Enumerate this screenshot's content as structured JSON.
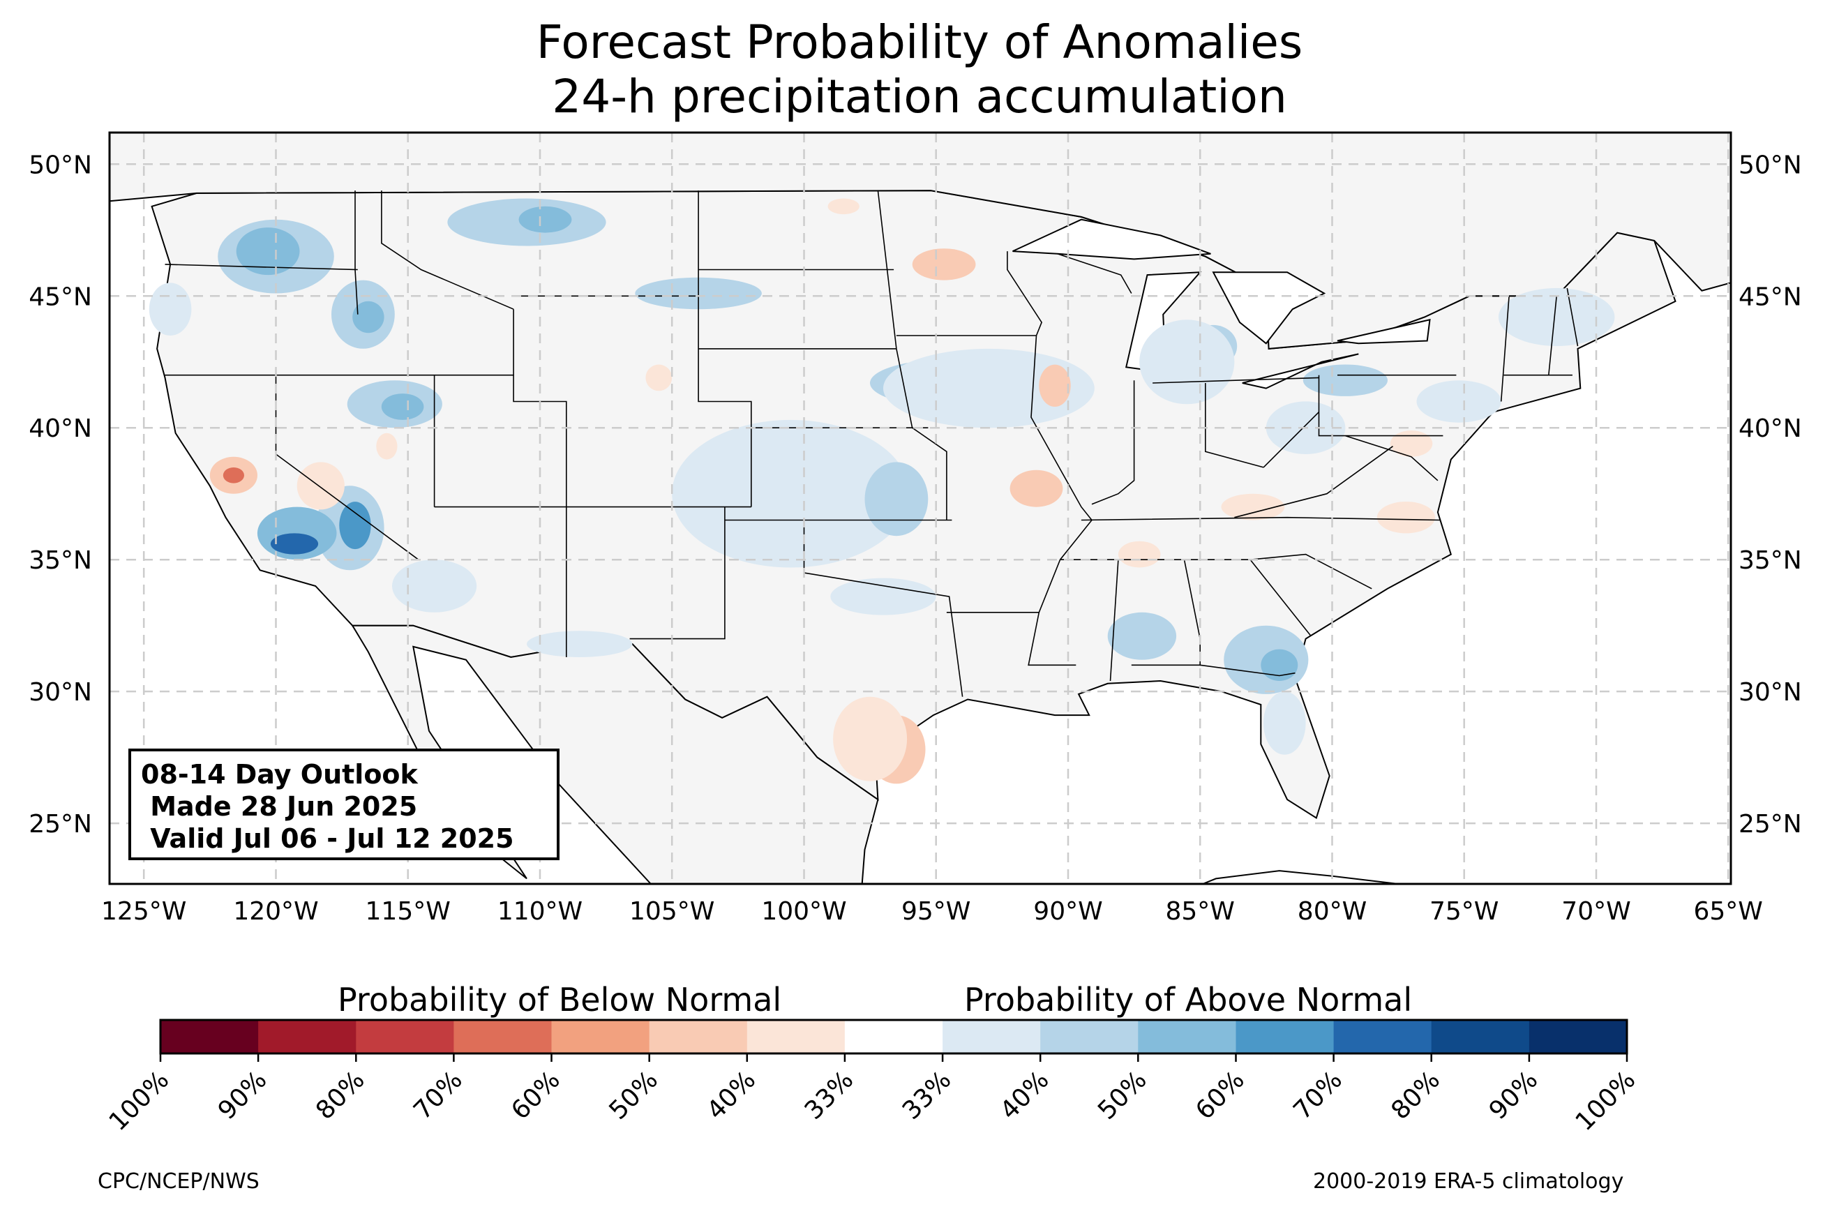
{
  "title_line1": "Forecast Probability of Anomalies",
  "title_line2": "24-h precipitation accumulation",
  "map": {
    "lon_range": [
      -126.3,
      -64.9
    ],
    "lat_range": [
      22.7,
      51.2
    ],
    "lat_labels": [
      "50°N",
      "45°N",
      "40°N",
      "35°N",
      "30°N",
      "25°N"
    ],
    "lat_values": [
      50,
      45,
      40,
      35,
      30,
      25
    ],
    "lon_labels": [
      "125°W",
      "120°W",
      "115°W",
      "110°W",
      "105°W",
      "100°W",
      "95°W",
      "90°W",
      "85°W",
      "80°W",
      "75°W",
      "70°W",
      "65°W"
    ],
    "lon_values": [
      -125,
      -120,
      -115,
      -110,
      -105,
      -100,
      -95,
      -90,
      -85,
      -80,
      -75,
      -70,
      -65
    ],
    "land_color": "#f5f5f5",
    "water_color": "#ffffff",
    "grid_line_color": "#cccccc",
    "anomaly_areas": [
      {
        "category": "above",
        "level": 2,
        "lon": -120.0,
        "lat": 46.5,
        "rlon": 2.2,
        "rlat": 1.4
      },
      {
        "category": "above",
        "level": 3,
        "lon": -120.3,
        "lat": 46.7,
        "rlon": 1.2,
        "rlat": 0.9
      },
      {
        "category": "above",
        "level": 2,
        "lon": -116.7,
        "lat": 44.3,
        "rlon": 1.2,
        "rlat": 1.3
      },
      {
        "category": "above",
        "level": 3,
        "lon": -116.5,
        "lat": 44.2,
        "rlon": 0.6,
        "rlat": 0.6
      },
      {
        "category": "above",
        "level": 2,
        "lon": -110.5,
        "lat": 47.8,
        "rlon": 3.0,
        "rlat": 0.9
      },
      {
        "category": "above",
        "level": 3,
        "lon": -109.8,
        "lat": 47.9,
        "rlon": 1.0,
        "rlat": 0.5
      },
      {
        "category": "above",
        "level": 2,
        "lon": -104.0,
        "lat": 45.1,
        "rlon": 2.4,
        "rlat": 0.6
      },
      {
        "category": "above",
        "level": 2,
        "lon": -115.5,
        "lat": 40.9,
        "rlon": 1.8,
        "rlat": 0.9
      },
      {
        "category": "above",
        "level": 3,
        "lon": -115.2,
        "lat": 40.8,
        "rlon": 0.8,
        "rlat": 0.5
      },
      {
        "category": "above",
        "level": 2,
        "lon": -117.2,
        "lat": 36.2,
        "rlon": 1.3,
        "rlat": 1.6
      },
      {
        "category": "above",
        "level": 4,
        "lon": -117.0,
        "lat": 36.3,
        "rlon": 0.6,
        "rlat": 0.9
      },
      {
        "category": "above",
        "level": 3,
        "lon": -119.2,
        "lat": 36.0,
        "rlon": 1.5,
        "rlat": 1.0
      },
      {
        "category": "above",
        "level": 5,
        "lon": -119.3,
        "lat": 35.6,
        "rlon": 0.9,
        "rlat": 0.4
      },
      {
        "category": "above",
        "level": 1,
        "lon": -114.0,
        "lat": 34.0,
        "rlon": 1.6,
        "rlat": 1.0
      },
      {
        "category": "above",
        "level": 2,
        "lon": -100.0,
        "lat": 38.0,
        "rlon": 3.0,
        "rlat": 1.8
      },
      {
        "category": "above",
        "level": 1,
        "lon": -100.5,
        "lat": 37.5,
        "rlon": 4.5,
        "rlat": 2.8
      },
      {
        "category": "above",
        "level": 2,
        "lon": -96.5,
        "lat": 37.3,
        "rlon": 1.2,
        "rlat": 1.4
      },
      {
        "category": "above",
        "level": 2,
        "lon": -94.5,
        "lat": 41.7,
        "rlon": 3.0,
        "rlat": 0.9
      },
      {
        "category": "above",
        "level": 1,
        "lon": -93.0,
        "lat": 41.5,
        "rlon": 4.0,
        "rlat": 1.5
      },
      {
        "category": "above",
        "level": 1,
        "lon": -97.0,
        "lat": 33.6,
        "rlon": 2.0,
        "rlat": 0.7
      },
      {
        "category": "above",
        "level": 1,
        "lon": -108.5,
        "lat": 31.8,
        "rlon": 2.0,
        "rlat": 0.5
      },
      {
        "category": "above",
        "level": 2,
        "lon": -82.5,
        "lat": 31.2,
        "rlon": 1.6,
        "rlat": 1.3
      },
      {
        "category": "above",
        "level": 3,
        "lon": -82.0,
        "lat": 31.0,
        "rlon": 0.7,
        "rlat": 0.6
      },
      {
        "category": "above",
        "level": 2,
        "lon": -87.2,
        "lat": 32.1,
        "rlon": 1.3,
        "rlat": 0.9
      },
      {
        "category": "above",
        "level": 1,
        "lon": -81.8,
        "lat": 28.8,
        "rlon": 0.8,
        "rlat": 1.2
      },
      {
        "category": "above",
        "level": 2,
        "lon": -84.5,
        "lat": 43.1,
        "rlon": 0.9,
        "rlat": 0.8
      },
      {
        "category": "above",
        "level": 1,
        "lon": -85.5,
        "lat": 42.5,
        "rlon": 1.8,
        "rlat": 1.6
      },
      {
        "category": "above",
        "level": 2,
        "lon": -79.5,
        "lat": 41.8,
        "rlon": 1.6,
        "rlat": 0.6
      },
      {
        "category": "above",
        "level": 1,
        "lon": -81.0,
        "lat": 40.0,
        "rlon": 1.5,
        "rlat": 1.0
      },
      {
        "category": "above",
        "level": 1,
        "lon": -75.2,
        "lat": 41.0,
        "rlon": 1.6,
        "rlat": 0.8
      },
      {
        "category": "above",
        "level": 1,
        "lon": -71.5,
        "lat": 44.2,
        "rlon": 2.2,
        "rlat": 1.1
      },
      {
        "category": "above",
        "level": 1,
        "lon": -124.0,
        "lat": 44.5,
        "rlon": 0.8,
        "rlat": 1.0
      },
      {
        "category": "below",
        "level": 2,
        "lon": -121.6,
        "lat": 38.2,
        "rlon": 0.9,
        "rlat": 0.7
      },
      {
        "category": "below",
        "level": 4,
        "lon": -121.6,
        "lat": 38.2,
        "rlon": 0.4,
        "rlat": 0.3
      },
      {
        "category": "below",
        "level": 1,
        "lon": -118.3,
        "lat": 37.8,
        "rlon": 0.9,
        "rlat": 0.9
      },
      {
        "category": "below",
        "level": 2,
        "lon": -94.7,
        "lat": 46.2,
        "rlon": 1.2,
        "rlat": 0.6
      },
      {
        "category": "below",
        "level": 2,
        "lon": -90.5,
        "lat": 41.6,
        "rlon": 0.6,
        "rlat": 0.8
      },
      {
        "category": "below",
        "level": 2,
        "lon": -91.2,
        "lat": 37.7,
        "rlon": 1.0,
        "rlat": 0.7
      },
      {
        "category": "below",
        "level": 2,
        "lon": -96.5,
        "lat": 27.8,
        "rlon": 1.1,
        "rlat": 1.3
      },
      {
        "category": "below",
        "level": 1,
        "lon": -97.5,
        "lat": 28.2,
        "rlon": 1.4,
        "rlat": 1.6
      },
      {
        "category": "below",
        "level": 1,
        "lon": -87.3,
        "lat": 35.2,
        "rlon": 0.8,
        "rlat": 0.5
      },
      {
        "category": "below",
        "level": 1,
        "lon": -83.0,
        "lat": 37.0,
        "rlon": 1.2,
        "rlat": 0.5
      },
      {
        "category": "below",
        "level": 1,
        "lon": -77.2,
        "lat": 36.6,
        "rlon": 1.1,
        "rlat": 0.6
      },
      {
        "category": "below",
        "level": 1,
        "lon": -77.0,
        "lat": 39.4,
        "rlon": 0.8,
        "rlat": 0.5
      },
      {
        "category": "below",
        "level": 1,
        "lon": -98.5,
        "lat": 48.4,
        "rlon": 0.6,
        "rlat": 0.3
      },
      {
        "category": "below",
        "level": 1,
        "lon": -115.8,
        "lat": 39.3,
        "rlon": 0.4,
        "rlat": 0.5
      },
      {
        "category": "below",
        "level": 1,
        "lon": -105.5,
        "lat": 41.9,
        "rlon": 0.5,
        "rlat": 0.5
      }
    ]
  },
  "outlook_box": {
    "line1": "08-14 Day Outlook",
    "line2": " Made 28 Jun 2025",
    "line3": " Valid Jul 06 - Jul 12 2025"
  },
  "colorbar": {
    "below_label": "Probability of Below Normal",
    "above_label": "Probability of Above Normal",
    "colors": [
      "#67001f",
      "#a11a2a",
      "#c33c3f",
      "#de6e58",
      "#f2a17f",
      "#f9cbb4",
      "#fbe5d8",
      "#ffffff",
      "#dce9f3",
      "#b5d4e8",
      "#84bcdb",
      "#4b98c8",
      "#2367ac",
      "#0f4a8a",
      "#08306b"
    ],
    "ticks": [
      "100%",
      "90%",
      "80%",
      "70%",
      "60%",
      "50%",
      "40%",
      "33%",
      "33%",
      "40%",
      "50%",
      "60%",
      "70%",
      "80%",
      "90%",
      "100%"
    ]
  },
  "below_level_colors": [
    "#fbe5d8",
    "#f9cbb4",
    "#f2a17f",
    "#de6e58",
    "#c33c3f"
  ],
  "above_level_colors": [
    "#dce9f3",
    "#b5d4e8",
    "#84bcdb",
    "#4b98c8",
    "#2367ac",
    "#0f4a8a"
  ],
  "footer_left": "CPC/NCEP/NWS",
  "footer_right": "2000-2019 ERA-5 climatology"
}
